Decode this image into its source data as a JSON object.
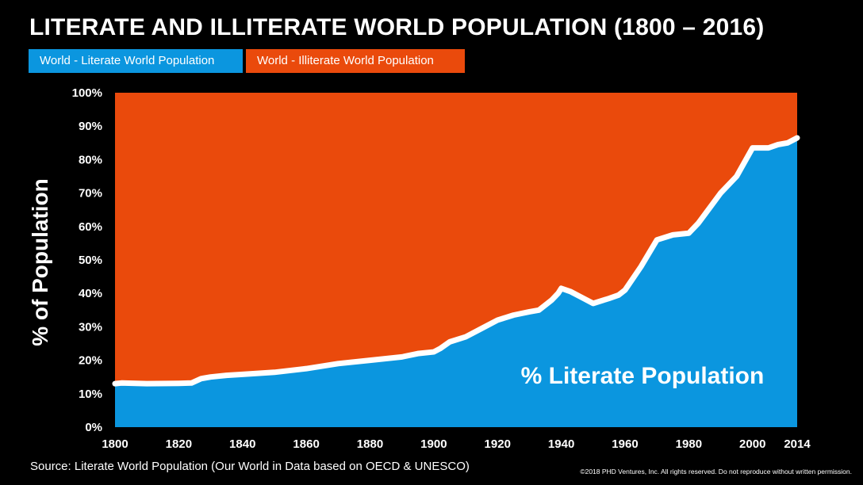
{
  "title": "LITERATE AND ILLITERATE WORLD POPULATION (1800 – 2016)",
  "legend": [
    {
      "label": "World - Literate World Population",
      "color": "#0b96df"
    },
    {
      "label": "World - Illiterate World Population",
      "color": "#ea4a0c"
    }
  ],
  "source": "Source: Literate World Population (Our World in Data based on OECD & UNESCO)",
  "copyright": "©2018 PHD Ventures, Inc. All rights reserved. Do not reproduce without written permission.",
  "chart_data": {
    "type": "area",
    "stacked": true,
    "ylabel": "% of Population",
    "xlim": [
      1800,
      2014
    ],
    "ylim": [
      0,
      100
    ],
    "x_ticks": [
      "1800",
      "1820",
      "1840",
      "1860",
      "1880",
      "1900",
      "1920",
      "1940",
      "1960",
      "1980",
      "2000",
      "2014"
    ],
    "y_ticks": [
      "0%",
      "10%",
      "20%",
      "30%",
      "40%",
      "50%",
      "60%",
      "70%",
      "80%",
      "90%",
      "100%"
    ],
    "annotation": "% Literate Population",
    "series": [
      {
        "name": "World - Literate World Population",
        "color": "#0b96df",
        "x": [
          1800,
          1802,
          1810,
          1820,
          1824,
          1827,
          1830,
          1835,
          1840,
          1850,
          1860,
          1870,
          1880,
          1890,
          1895,
          1900,
          1902,
          1905,
          1910,
          1915,
          1920,
          1925,
          1930,
          1933,
          1937,
          1939,
          1940,
          1943,
          1946,
          1950,
          1955,
          1958,
          1960,
          1965,
          1970,
          1975,
          1980,
          1983,
          1990,
          1995,
          2000,
          2002,
          2005,
          2008,
          2011,
          2014
        ],
        "values": [
          13,
          13.2,
          13,
          13.1,
          13.2,
          14.5,
          15,
          15.5,
          15.8,
          16.4,
          17.5,
          19,
          20,
          21,
          22,
          22.5,
          23.5,
          25.5,
          27,
          29.5,
          32,
          33.5,
          34.5,
          35,
          38,
          40,
          41.5,
          40.5,
          39,
          37,
          38.5,
          39.5,
          41,
          48,
          56,
          57.5,
          58,
          61,
          70,
          75,
          83.5,
          83.5,
          83.5,
          84.5,
          85,
          86.5
        ]
      },
      {
        "name": "World - Illiterate World Population",
        "color": "#ea4a0c",
        "values": [
          87,
          86.8,
          87,
          86.9,
          86.8,
          85.5,
          85,
          84.5,
          84.2,
          83.6,
          82.5,
          81,
          80,
          79,
          78,
          77.5,
          76.5,
          74.5,
          73,
          70.5,
          68,
          66.5,
          65.5,
          65,
          62,
          60,
          58.5,
          59.5,
          61,
          63,
          61.5,
          60.5,
          59,
          52,
          44,
          42.5,
          42,
          39,
          30,
          25,
          16.5,
          16.5,
          16.5,
          15.5,
          15,
          13.5
        ]
      }
    ]
  }
}
